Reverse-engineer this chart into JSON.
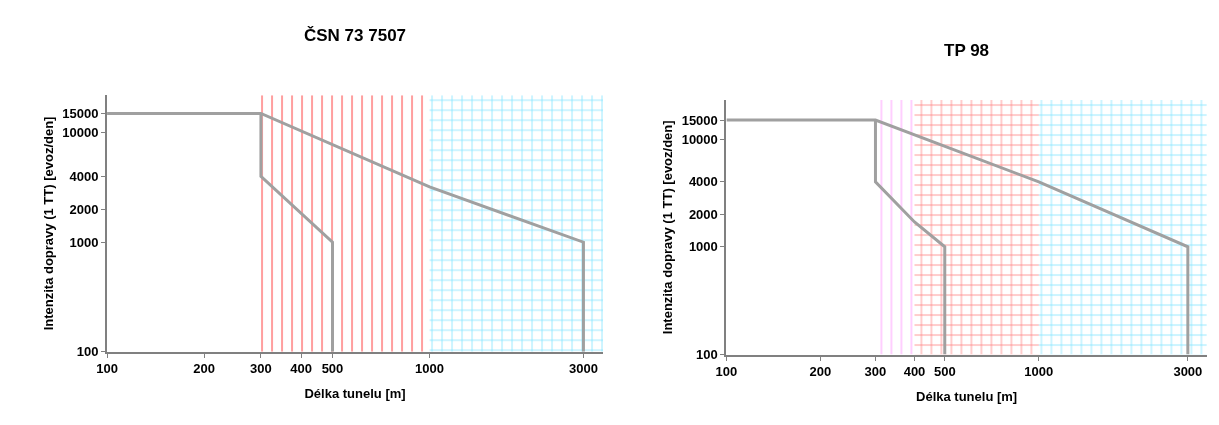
{
  "chart_data": [
    {
      "type": "line",
      "title": "ČSN 73 7507",
      "xlabel": "Délka tunelu [m]",
      "ylabel": "Intenzita dopravy (1 TT) [evoz/den]",
      "log": "xy",
      "marker": "none",
      "line_style": "solid",
      "xlim": [
        100,
        3450
      ],
      "ylim": [
        100,
        22000
      ],
      "xticks": [
        100,
        200,
        300,
        400,
        500,
        1000,
        3000
      ],
      "yticks": [
        100,
        1000,
        2000,
        4000,
        10000,
        15000
      ],
      "bands": [
        {
          "axis": "x",
          "from": 300,
          "to": 1000,
          "color": "#ff0000"
        },
        {
          "axis": "x",
          "from": 1000,
          "to": 3450,
          "color": "#00c8ff"
        }
      ],
      "series": [
        {
          "color": "#a0a0a0",
          "x": [
            100,
            300,
            1000,
            3000,
            3000
          ],
          "values": [
            15000,
            15000,
            3200,
            1000,
            100
          ]
        },
        {
          "color": "#a0a0a0",
          "x": [
            300,
            300,
            500,
            500
          ],
          "values": [
            15000,
            4000,
            1000,
            100
          ]
        }
      ]
    },
    {
      "type": "line",
      "title": "TP 98",
      "xlabel": "Délka tunelu [m]",
      "ylabel": "Intenzita dopravy (1 TT) [evoz/den]",
      "log": "xy",
      "marker": "none",
      "line_style": "solid",
      "xlim": [
        100,
        3450
      ],
      "ylim": [
        100,
        23000
      ],
      "xticks": [
        100,
        200,
        300,
        400,
        500,
        1000,
        3000
      ],
      "yticks": [
        100,
        1000,
        2000,
        4000,
        10000,
        15000
      ],
      "bands": [
        {
          "axis": "x",
          "from": 300,
          "to": 400,
          "color": "#ff80ff"
        },
        {
          "axis": "x",
          "from": 400,
          "to": 1000,
          "color": "#ff0000"
        },
        {
          "axis": "x",
          "from": 1000,
          "to": 3450,
          "color": "#00c8ff"
        }
      ],
      "series": [
        {
          "color": "#a0a0a0",
          "x": [
            100,
            300,
            1000,
            3000,
            3000
          ],
          "values": [
            15000,
            15000,
            4000,
            1000,
            100
          ]
        },
        {
          "color": "#a0a0a0",
          "x": [
            300,
            300,
            400,
            500,
            500
          ],
          "values": [
            15000,
            4000,
            1700,
            1000,
            100
          ]
        }
      ]
    }
  ]
}
